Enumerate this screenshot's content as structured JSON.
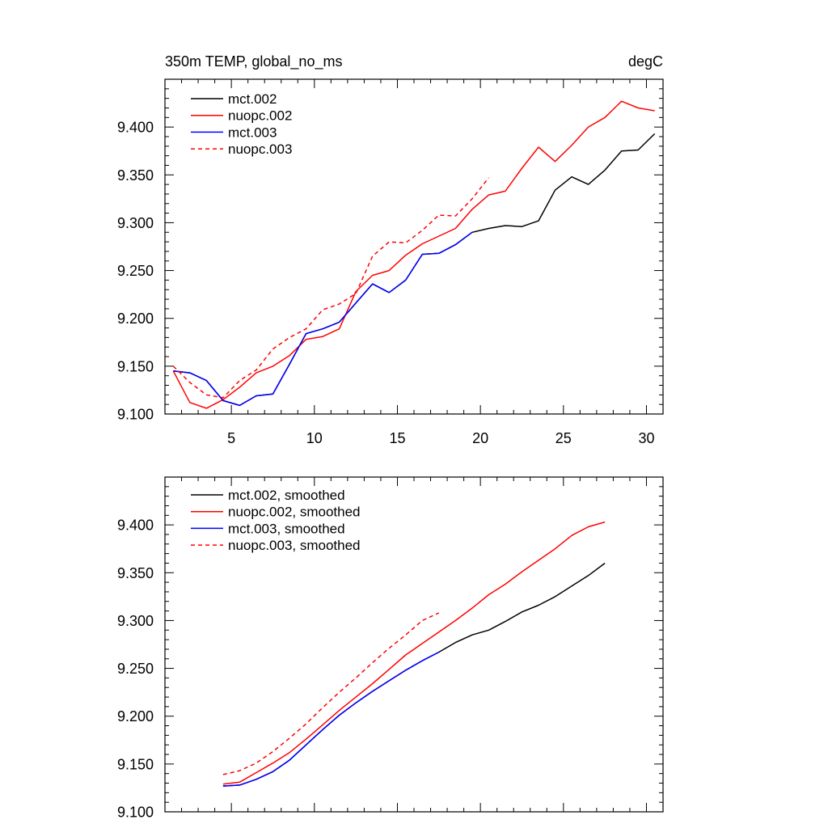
{
  "chart_data": [
    {
      "type": "line",
      "title": "350m TEMP, global_no_ms",
      "units": "degC",
      "xlabel": "",
      "ylabel": "",
      "xlim": [
        1,
        31
      ],
      "ylim": [
        9.1,
        9.45
      ],
      "xticks": [
        "5",
        "10",
        "15",
        "20",
        "25",
        "30"
      ],
      "yticks": [
        "9.100",
        "9.150",
        "9.200",
        "9.250",
        "9.300",
        "9.350",
        "9.400"
      ],
      "legend_position": "top-left",
      "series": [
        {
          "name": "mct.002",
          "color": "#000000",
          "dash": "solid",
          "x": [
            1.5,
            2.5,
            3.5,
            4.5,
            5.5,
            6.5,
            7.5,
            8.5,
            9.5,
            10.5,
            11.5,
            12.5,
            13.5,
            14.5,
            15.5,
            16.5,
            17.5,
            18.5,
            19.5,
            20.5,
            21.5,
            22.5,
            23.5,
            24.5,
            25.5,
            26.5,
            27.5,
            28.5,
            29.5,
            30.5
          ],
          "values": [
            9.145,
            9.143,
            9.135,
            9.114,
            9.109,
            9.119,
            9.121,
            9.152,
            9.184,
            9.189,
            9.196,
            9.216,
            9.236,
            9.227,
            9.24,
            9.267,
            9.268,
            9.277,
            9.29,
            9.294,
            9.297,
            9.296,
            9.302,
            9.334,
            9.348,
            9.34,
            9.355,
            9.375,
            9.376,
            9.393
          ]
        },
        {
          "name": "nuopc.002",
          "color": "#ff0000",
          "dash": "solid",
          "x": [
            1.5,
            2.5,
            3.5,
            4.5,
            5.5,
            6.5,
            7.5,
            8.5,
            9.5,
            10.5,
            11.5,
            12.5,
            13.5,
            14.5,
            15.5,
            16.5,
            17.5,
            18.5,
            19.5,
            20.5,
            21.5,
            22.5,
            23.5,
            24.5,
            25.5,
            26.5,
            27.5,
            28.5,
            29.5,
            30.5
          ],
          "values": [
            9.145,
            9.112,
            9.106,
            9.115,
            9.128,
            9.143,
            9.15,
            9.161,
            9.178,
            9.181,
            9.189,
            9.228,
            9.245,
            9.25,
            9.266,
            9.278,
            9.286,
            9.294,
            9.314,
            9.329,
            9.333,
            9.357,
            9.379,
            9.364,
            9.381,
            9.4,
            9.41,
            9.427,
            9.42,
            9.417
          ]
        },
        {
          "name": "mct.003",
          "color": "#0000ff",
          "dash": "solid",
          "x": [
            1.5,
            2.5,
            3.5,
            4.5,
            5.5,
            6.5,
            7.5,
            8.5,
            9.5,
            10.5,
            11.5,
            12.5,
            13.5,
            14.5,
            15.5,
            16.5,
            17.5,
            18.5,
            19.5
          ],
          "values": [
            9.145,
            9.143,
            9.135,
            9.114,
            9.109,
            9.119,
            9.121,
            9.152,
            9.184,
            9.189,
            9.196,
            9.216,
            9.236,
            9.227,
            9.24,
            9.267,
            9.268,
            9.277,
            9.29
          ]
        },
        {
          "name": "nuopc.003",
          "color": "#ff0000",
          "dash": "dashed",
          "x": [
            1.5,
            2.5,
            3.5,
            4.5,
            5.5,
            6.5,
            7.5,
            8.5,
            9.5,
            10.5,
            11.5,
            12.5,
            13.5,
            14.5,
            15.5,
            16.5,
            17.5,
            18.5,
            19.5,
            20.5
          ],
          "values": [
            9.15,
            9.133,
            9.12,
            9.117,
            9.135,
            9.146,
            9.168,
            9.18,
            9.189,
            9.209,
            9.215,
            9.226,
            9.265,
            9.28,
            9.279,
            9.292,
            9.308,
            9.307,
            9.325,
            9.347
          ]
        }
      ]
    },
    {
      "type": "line",
      "title": "",
      "xlabel": "",
      "ylabel": "",
      "xlim": [
        1,
        31
      ],
      "ylim": [
        9.1,
        9.45
      ],
      "xticks": [],
      "yticks": [
        "9.100",
        "9.150",
        "9.200",
        "9.250",
        "9.300",
        "9.350",
        "9.400"
      ],
      "legend_position": "top-left",
      "series": [
        {
          "name": "mct.002, smoothed",
          "color": "#000000",
          "dash": "solid",
          "x": [
            4.5,
            5.5,
            6.5,
            7.5,
            8.5,
            9.5,
            10.5,
            11.5,
            12.5,
            13.5,
            14.5,
            15.5,
            16.5,
            17.5,
            18.5,
            19.5,
            20.5,
            21.5,
            22.5,
            23.5,
            24.5,
            25.5,
            26.5,
            27.5
          ],
          "values": [
            9.127,
            9.128,
            9.134,
            9.142,
            9.154,
            9.17,
            9.186,
            9.201,
            9.214,
            9.226,
            9.237,
            9.248,
            9.258,
            9.267,
            9.277,
            9.285,
            9.29,
            9.299,
            9.309,
            9.316,
            9.325,
            9.336,
            9.347,
            9.36
          ]
        },
        {
          "name": "nuopc.002, smoothed",
          "color": "#ff0000",
          "dash": "solid",
          "x": [
            4.5,
            5.5,
            6.5,
            7.5,
            8.5,
            9.5,
            10.5,
            11.5,
            12.5,
            13.5,
            14.5,
            15.5,
            16.5,
            17.5,
            18.5,
            19.5,
            20.5,
            21.5,
            22.5,
            23.5,
            24.5,
            25.5,
            26.5,
            27.5
          ],
          "values": [
            9.129,
            9.131,
            9.141,
            9.151,
            9.162,
            9.176,
            9.191,
            9.206,
            9.22,
            9.234,
            9.249,
            9.264,
            9.276,
            9.288,
            9.3,
            9.313,
            9.327,
            9.338,
            9.351,
            9.363,
            9.375,
            9.389,
            9.398,
            9.403
          ]
        },
        {
          "name": "mct.003, smoothed",
          "color": "#0000ff",
          "dash": "solid",
          "x": [
            4.5,
            5.5,
            6.5,
            7.5,
            8.5,
            9.5,
            10.5,
            11.5,
            12.5,
            13.5,
            14.5,
            15.5,
            16.5,
            17.5
          ],
          "values": [
            9.127,
            9.128,
            9.134,
            9.142,
            9.154,
            9.17,
            9.186,
            9.201,
            9.214,
            9.226,
            9.237,
            9.248,
            9.258,
            9.267
          ]
        },
        {
          "name": "nuopc.003, smoothed",
          "color": "#ff0000",
          "dash": "dashed",
          "x": [
            4.5,
            5.5,
            6.5,
            7.5,
            8.5,
            9.5,
            10.5,
            11.5,
            12.5,
            13.5,
            14.5,
            15.5,
            16.5,
            17.5
          ],
          "values": [
            9.139,
            9.143,
            9.151,
            9.163,
            9.177,
            9.192,
            9.209,
            9.225,
            9.24,
            9.256,
            9.271,
            9.285,
            9.3,
            9.308
          ]
        }
      ]
    }
  ]
}
